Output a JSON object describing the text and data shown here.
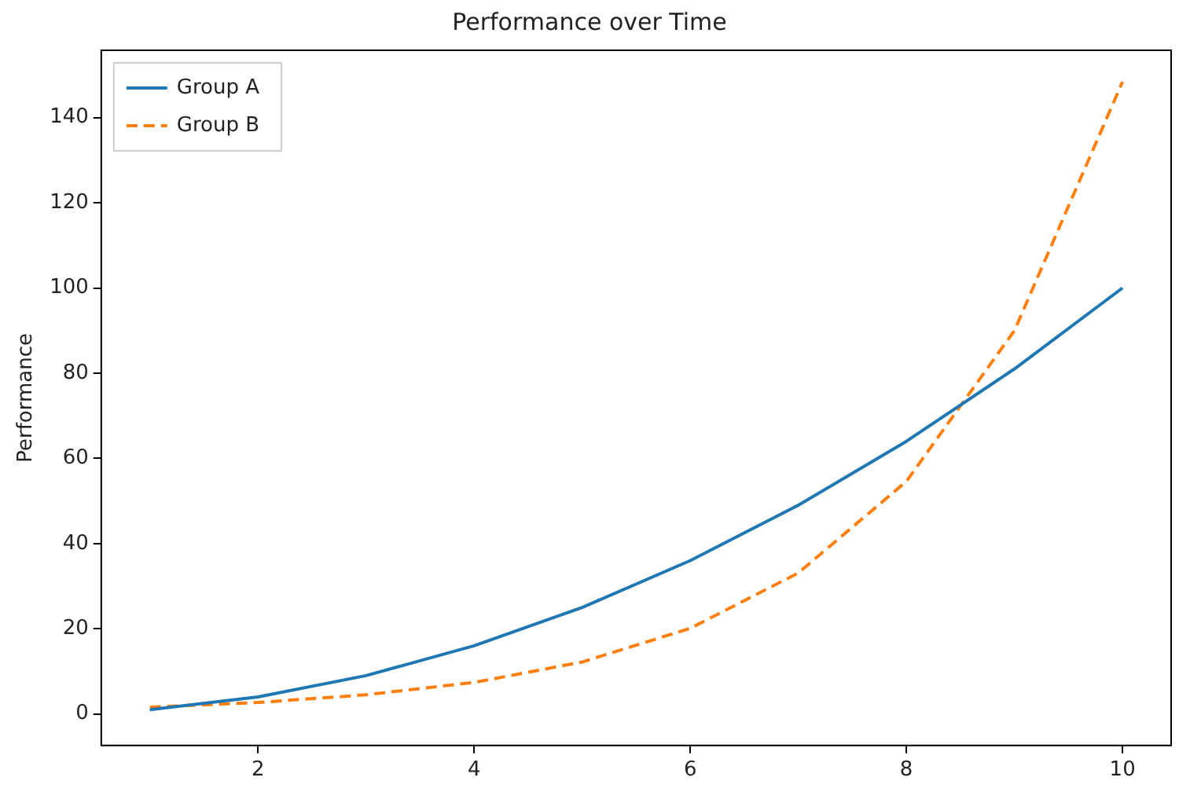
{
  "chart_data": {
    "type": "line",
    "title": "Performance over Time",
    "ylabel": "Performance",
    "x": [
      1,
      2,
      3,
      4,
      5,
      6,
      7,
      8,
      9,
      10
    ],
    "series": [
      {
        "name": "Group A",
        "color": "#1f77b4",
        "line_style": "solid",
        "values": [
          1,
          4,
          9,
          16,
          25,
          36,
          49,
          64,
          81,
          100
        ]
      },
      {
        "name": "Group B",
        "color": "#ff7f0e",
        "line_style": "dashed",
        "values": [
          1.6,
          2.7,
          4.5,
          7.4,
          12.2,
          20.1,
          33.1,
          54.6,
          90,
          148.4
        ]
      }
    ],
    "xlim": [
      0.55,
      10.45
    ],
    "xticks": [
      2,
      4,
      6,
      8,
      10
    ],
    "ylim": [
      -7.4,
      155.8
    ],
    "yticks": [
      0,
      20,
      40,
      60,
      80,
      100,
      120,
      140
    ],
    "grid": false,
    "legend": "top left",
    "marker": "none"
  }
}
